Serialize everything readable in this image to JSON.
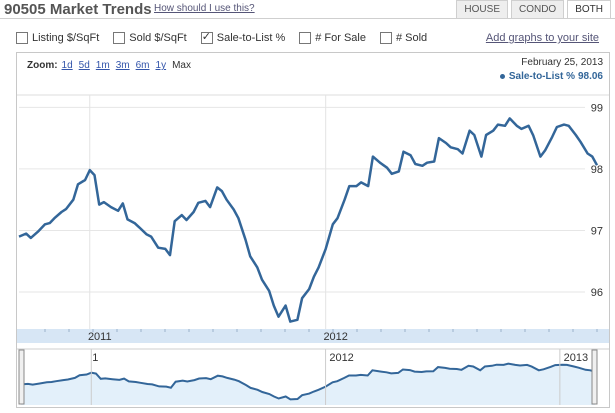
{
  "header": {
    "title": "90505 Market Trends",
    "help_link": "How should I use this?",
    "tabs": [
      {
        "label": "HOUSE",
        "active": false
      },
      {
        "label": "CONDO",
        "active": false
      },
      {
        "label": "BOTH",
        "active": true
      }
    ]
  },
  "checkboxes": [
    {
      "label": "Listing $/SqFt",
      "checked": false
    },
    {
      "label": "Sold $/SqFt",
      "checked": false
    },
    {
      "label": "Sale-to-List %",
      "checked": true
    },
    {
      "label": "# For Sale",
      "checked": false
    },
    {
      "label": "# Sold",
      "checked": false
    }
  ],
  "add_graphs_link": "Add graphs to your site",
  "zoom": {
    "label": "Zoom:",
    "options": [
      "1d",
      "5d",
      "1m",
      "3m",
      "6m",
      "1y",
      "Max"
    ],
    "current": "Max"
  },
  "readout": {
    "date": "February 25, 2013",
    "series_label": "Sale-to-List %",
    "series_value": "98.06"
  },
  "colors": {
    "line": "#336699",
    "axis_band": "#d7e6f5",
    "navigator_fill": "#e3f0fa"
  },
  "chart_data": {
    "type": "line",
    "ylim": [
      95.4,
      99.2
    ],
    "y_ticks": [
      96,
      97,
      98,
      99
    ],
    "x_ticks": [
      {
        "label": "2011",
        "x": 2011.0
      },
      {
        "label": "2012",
        "x": 2012.0
      }
    ],
    "xlim": [
      2010.7,
      2013.15
    ],
    "navigator_ticks": [
      {
        "label": "1",
        "x": 2011.0
      },
      {
        "label": "2012",
        "x": 2012.0
      },
      {
        "label": "2013",
        "x": 2013.0
      }
    ],
    "series": [
      {
        "x": [
          2010.7,
          2010.73,
          2010.75,
          2010.78,
          2010.81,
          2010.83,
          2010.85,
          2010.88,
          2010.9,
          2010.93,
          2010.95,
          2010.98,
          2011.0,
          2011.02,
          2011.04,
          2011.06,
          2011.09,
          2011.12,
          2011.14,
          2011.16,
          2011.19,
          2011.21,
          2011.24,
          2011.26,
          2011.29,
          2011.32,
          2011.34,
          2011.36,
          2011.39,
          2011.41,
          2011.44,
          2011.46,
          2011.49,
          2011.51,
          2011.54,
          2011.56,
          2011.58,
          2011.61,
          2011.63,
          2011.66,
          2011.68,
          2011.71,
          2011.73,
          2011.76,
          2011.78,
          2011.8,
          2011.83,
          2011.85,
          2011.88,
          2011.9,
          2011.93,
          2011.95,
          2011.97,
          2012.0,
          2012.03,
          2012.05,
          2012.08,
          2012.1,
          2012.13,
          2012.15,
          2012.18,
          2012.2,
          2012.23,
          2012.26,
          2012.28,
          2012.31,
          2012.33,
          2012.36,
          2012.38,
          2012.41,
          2012.43,
          2012.46,
          2012.48,
          2012.51,
          2012.53,
          2012.56,
          2012.58,
          2012.61,
          2012.63,
          2012.66,
          2012.68,
          2012.71,
          2012.73,
          2012.76,
          2012.78,
          2012.81,
          2012.83,
          2012.86,
          2012.88,
          2012.91,
          2012.93,
          2012.96,
          2012.98,
          2013.01,
          2013.03,
          2013.06,
          2013.08,
          2013.11,
          2013.13,
          2013.15
        ],
        "values": [
          96.9,
          96.95,
          96.88,
          96.98,
          97.1,
          97.12,
          97.2,
          97.3,
          97.35,
          97.5,
          97.75,
          97.82,
          97.98,
          97.9,
          97.42,
          97.46,
          97.38,
          97.32,
          97.44,
          97.18,
          97.12,
          97.05,
          96.94,
          96.9,
          96.72,
          96.7,
          96.6,
          97.15,
          97.25,
          97.17,
          97.3,
          97.45,
          97.48,
          97.38,
          97.7,
          97.64,
          97.5,
          97.34,
          97.2,
          96.85,
          96.58,
          96.4,
          96.2,
          96.02,
          95.78,
          95.6,
          95.78,
          95.52,
          95.55,
          95.9,
          96.05,
          96.25,
          96.4,
          96.7,
          97.1,
          97.2,
          97.5,
          97.72,
          97.72,
          97.78,
          97.72,
          98.2,
          98.1,
          98.02,
          97.92,
          97.96,
          98.28,
          98.22,
          98.08,
          98.05,
          98.1,
          98.12,
          98.5,
          98.42,
          98.35,
          98.32,
          98.25,
          98.62,
          98.55,
          98.2,
          98.55,
          98.62,
          98.72,
          98.7,
          98.82,
          98.7,
          98.65,
          98.7,
          98.54,
          98.2,
          98.3,
          98.52,
          98.68,
          98.72,
          98.7,
          98.55,
          98.44,
          98.25,
          98.2,
          98.06
        ]
      }
    ]
  }
}
